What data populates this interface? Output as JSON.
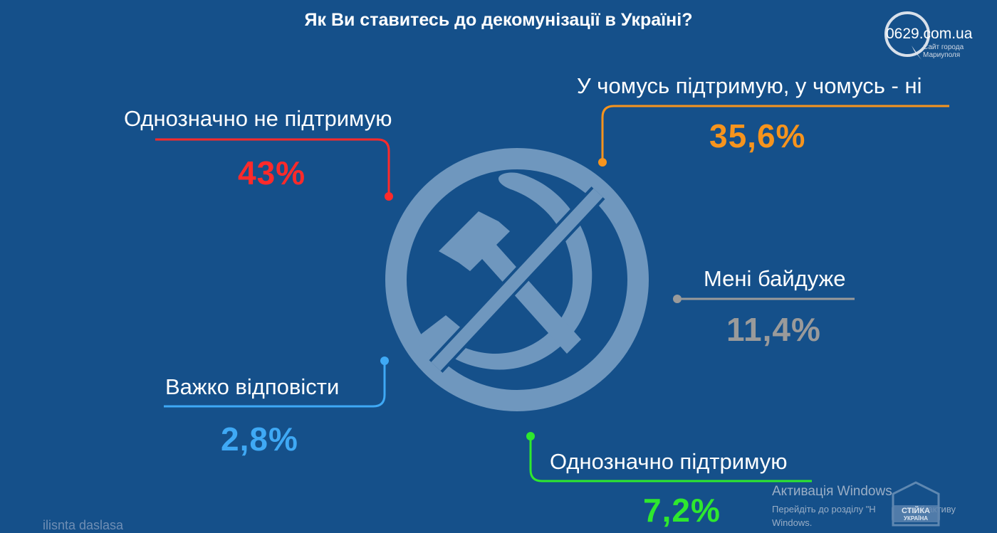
{
  "title": "Як Ви ставитесь до декомунізації в Україні?",
  "logo": {
    "site": "0629.com.ua",
    "tagline_1": "Сайт города",
    "tagline_2": "Мариуполя"
  },
  "colors": {
    "background": "#15508a",
    "emblem": "#6f97be",
    "red": "#ff2a2a",
    "orange": "#f7941d",
    "gray": "#9a9a9a",
    "blue": "#3fa9f5",
    "green": "#2ee82e"
  },
  "chart_data": {
    "type": "pie",
    "title": "Як Ви ставитесь до декомунізації в Україні?",
    "categories": [
      "Однозначно не підтримую",
      "У чомусь підтримую, у чомусь - ні",
      "Мені байдуже",
      "Важко відповісти",
      "Однозначно підтримую"
    ],
    "values": [
      43,
      35.6,
      11.4,
      2.8,
      7.2
    ],
    "value_labels": [
      "43%",
      "35,6%",
      "11,4%",
      "2,8%",
      "7,2%"
    ],
    "unit": "%",
    "colors": [
      "#ff2a2a",
      "#f7941d",
      "#9a9a9a",
      "#3fa9f5",
      "#2ee82e"
    ]
  },
  "watermark": {
    "line1": "Активація Windows",
    "line2": "Перейдіть до розділу \"Н",
    "line2_end": "щоб активу",
    "line3": "Windows."
  },
  "stamp_text": [
    "СТІЙКА",
    "УКРАЇНА"
  ],
  "bottom_text": "ilisnta daslasa"
}
